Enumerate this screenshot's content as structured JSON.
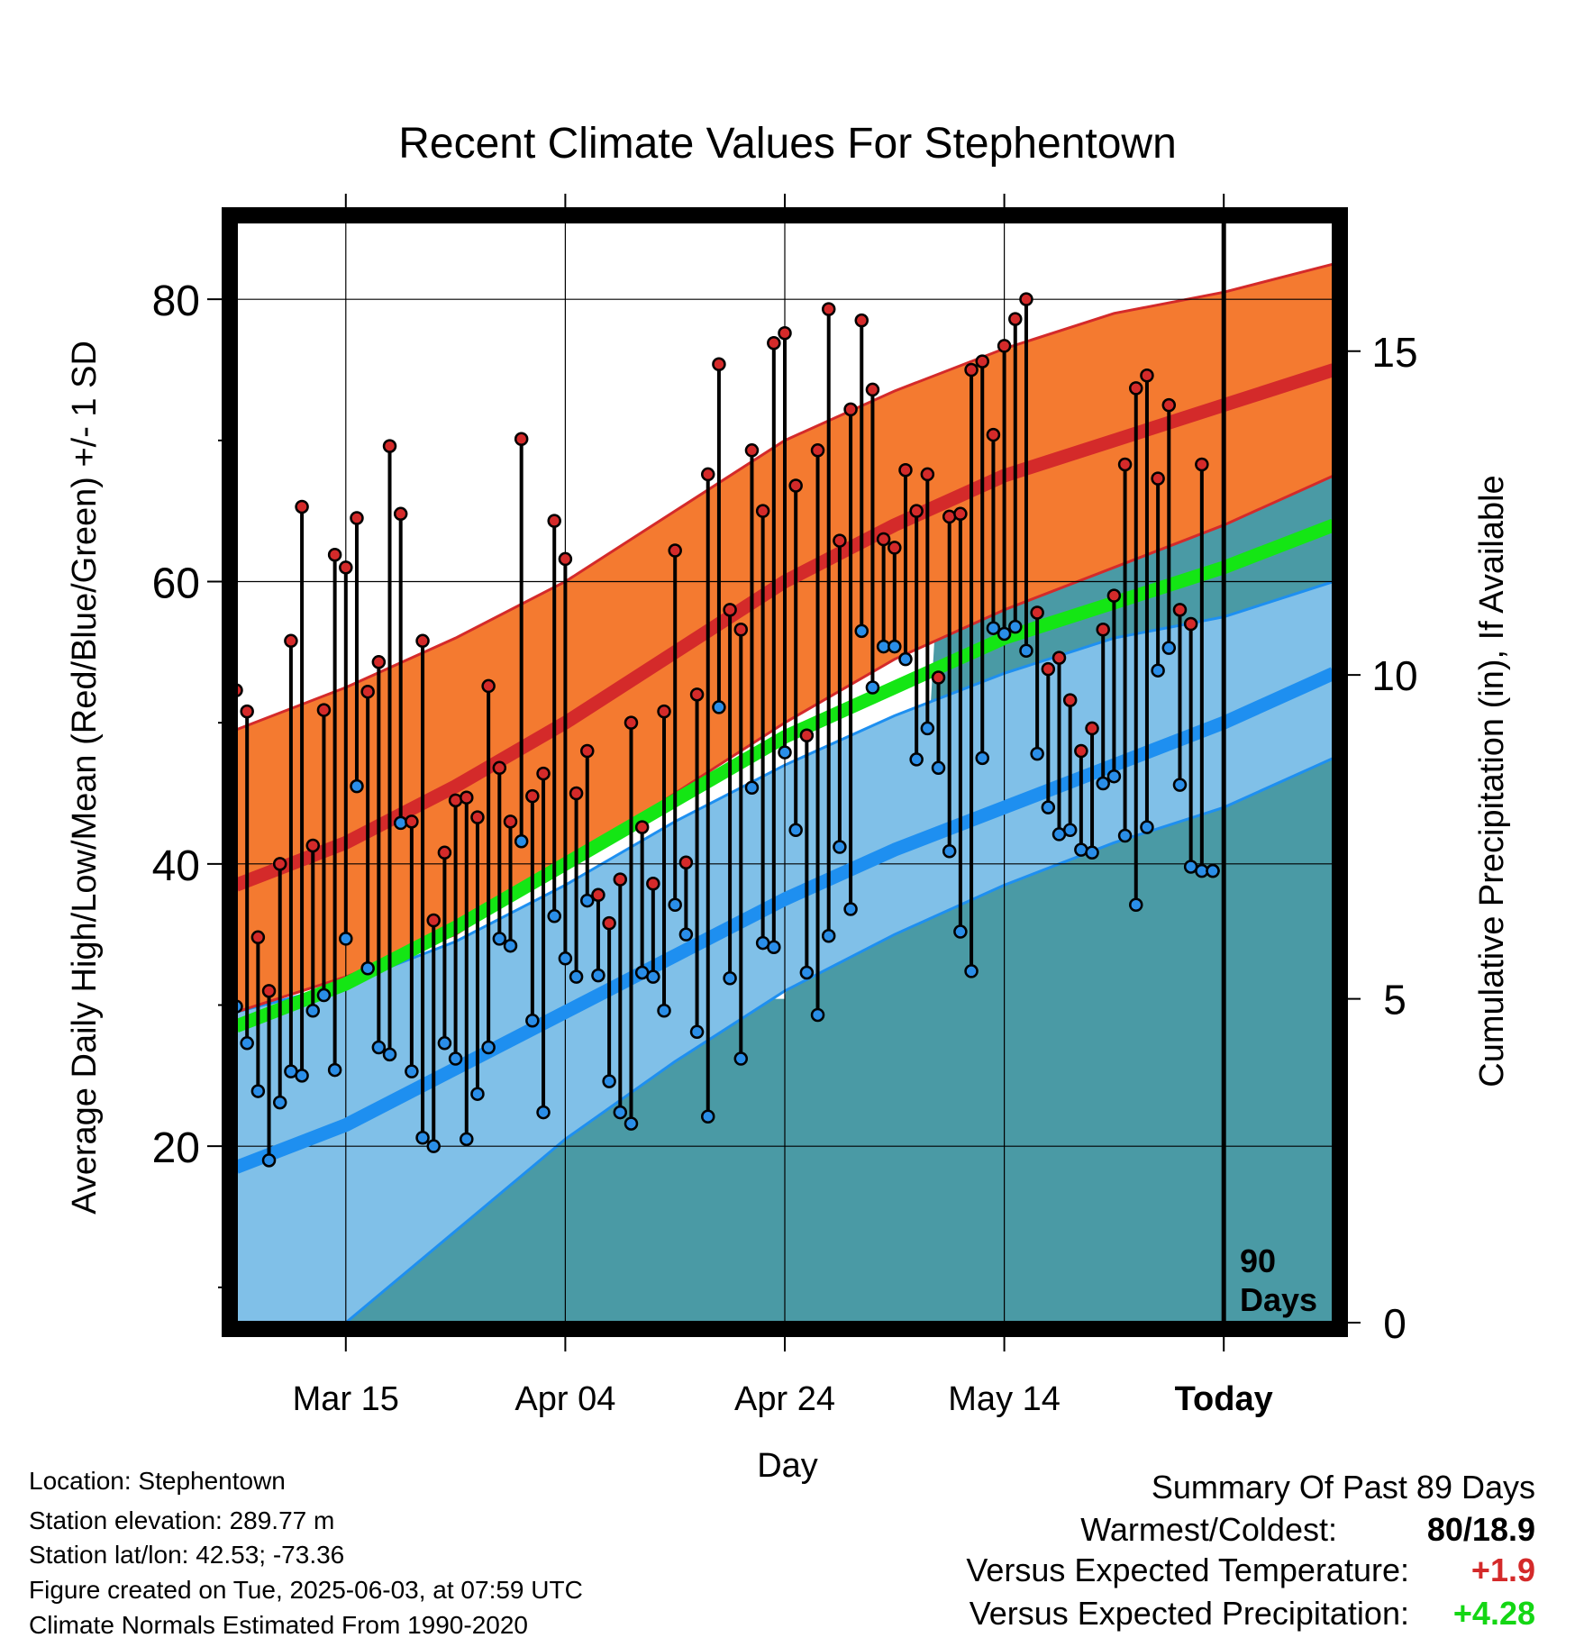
{
  "title": "Recent Climate Values For Stephentown",
  "y_axis_label": "Average Daily High/Low/Mean (Red/Blue/Green) +/- 1 SD",
  "y2_axis_label": "Cumulative Precipitation (in), If Available",
  "x_axis_label": "Day",
  "x_tick_labels": [
    "Mar 15",
    "Apr 04",
    "Apr 24",
    "May 14",
    "Today"
  ],
  "y_tick_labels": [
    "20",
    "40",
    "60",
    "80"
  ],
  "y2_tick_labels": [
    "0",
    "5",
    "10",
    "15"
  ],
  "today_label_line1": "90",
  "today_label_line2": "Days",
  "info": {
    "location": "Location: Stephentown",
    "elevation": "Station elevation: 289.77 m",
    "latlon": "Station lat/lon: 42.53; -73.36",
    "created": "Figure created on Tue, 2025-06-03, at 07:59 UTC",
    "normals": "Climate Normals Estimated From 1990-2020"
  },
  "summary": {
    "title": "Summary Of Past 89 Days",
    "warm_cold_label": "Warmest/Coldest:",
    "warm_cold_value": "80/18.9",
    "temp_label": "Versus Expected Temperature:",
    "temp_value": "+1.9",
    "precip_label": "Versus Expected Precipitation:",
    "precip_value": "+4.28"
  },
  "colors": {
    "high_band": "#f47a30",
    "high_line": "#d42a2a",
    "low_band": "#80c0e8",
    "low_line": "#1e8ff0",
    "mean_line": "#14e614",
    "precip": "#4a9aa5",
    "high_point": "#d42a2a",
    "low_point": "#2a8ee8",
    "temp_delta": "#d42a2a",
    "precip_delta": "#14d614"
  },
  "chart_data": {
    "type": "line",
    "x_unit": "day_offset",
    "xlim": [
      0,
      100
    ],
    "ylim": [
      7.5,
      85.5
    ],
    "y2lim": [
      0,
      17
    ],
    "today_x": 90,
    "x_ticks": [
      10,
      30,
      50,
      70,
      90
    ],
    "y_ticks": [
      20,
      40,
      60,
      80
    ],
    "y2_ticks": [
      0,
      5,
      10,
      15
    ],
    "normals": {
      "x": [
        0,
        10,
        20,
        30,
        40,
        50,
        60,
        70,
        80,
        90,
        100
      ],
      "high_mean": [
        38.5,
        41.5,
        45.5,
        50,
        55,
        60,
        64,
        67.5,
        70,
        72.5,
        75
      ],
      "high_upper": [
        49.5,
        52.5,
        56,
        60,
        65,
        70,
        73.5,
        76.5,
        79,
        80.5,
        82.5
      ],
      "high_lower": [
        29.5,
        32,
        35,
        40,
        45,
        50,
        54.5,
        58,
        61,
        64,
        67.5
      ],
      "low_mean": [
        18.5,
        21.5,
        25.5,
        29.5,
        33.5,
        37.5,
        41,
        44,
        47,
        50,
        53.5
      ],
      "low_upper": [
        29.5,
        31.5,
        34.5,
        38.5,
        43,
        47,
        50.5,
        53.5,
        56,
        57.5,
        60
      ],
      "low_lower": [
        7.5,
        7.5,
        14,
        20.5,
        26,
        31,
        35,
        38.5,
        41.5,
        44,
        47.5
      ],
      "mean": [
        28.5,
        31.5,
        35.5,
        40,
        44.5,
        49,
        52.5,
        56,
        58.5,
        61,
        64
      ]
    },
    "daily": {
      "x": [
        0,
        1,
        2,
        3,
        4,
        5,
        6,
        7,
        8,
        9,
        10,
        11,
        12,
        13,
        14,
        15,
        16,
        17,
        18,
        19,
        20,
        21,
        22,
        23,
        24,
        25,
        26,
        27,
        28,
        29,
        30,
        31,
        32,
        33,
        34,
        35,
        36,
        37,
        38,
        39,
        40,
        41,
        42,
        43,
        44,
        45,
        46,
        47,
        48,
        49,
        50,
        51,
        52,
        53,
        54,
        55,
        56,
        57,
        58,
        59,
        60,
        61,
        62,
        63,
        64,
        65,
        66,
        67,
        68,
        69,
        70,
        71,
        72,
        73,
        74,
        75,
        76,
        77,
        78,
        79,
        80,
        81,
        82,
        83,
        84,
        85,
        86,
        87,
        88,
        89
      ],
      "high": [
        52.3,
        50.8,
        34.8,
        31,
        40,
        55.8,
        65.3,
        41.3,
        50.9,
        61.9,
        61,
        64.5,
        52.2,
        54.3,
        69.6,
        64.8,
        43,
        55.8,
        36,
        40.8,
        44.5,
        44.7,
        43.3,
        52.6,
        46.8,
        43,
        70.1,
        44.8,
        46.4,
        64.3,
        61.6,
        45,
        48,
        37.8,
        35.8,
        38.9,
        50,
        42.6,
        38.6,
        50.8,
        62.2,
        40.1,
        52,
        67.6,
        75.4,
        58,
        56.6,
        69.3,
        65,
        76.9,
        77.6,
        66.8,
        49.1,
        69.3,
        79.3,
        62.9,
        72.2,
        78.5,
        73.6,
        63,
        62.4,
        67.9,
        65,
        67.6,
        53.2,
        64.6,
        64.8,
        75,
        75.6,
        70.4,
        76.7,
        78.6,
        80,
        57.8,
        53.8,
        54.6,
        51.6,
        48,
        49.6,
        56.6,
        59,
        68.3,
        73.7,
        74.6,
        67.3,
        72.5,
        58,
        57,
        68.3,
        39.5
      ],
      "low": [
        29.9,
        27.3,
        23.9,
        19,
        23.1,
        25.3,
        25,
        29.6,
        30.7,
        25.4,
        34.7,
        45.5,
        32.6,
        27,
        26.5,
        42.9,
        25.3,
        20.6,
        20,
        27.3,
        26.2,
        20.5,
        23.7,
        27,
        34.7,
        34.2,
        41.6,
        28.9,
        22.4,
        36.3,
        33.3,
        32,
        37.4,
        32.1,
        24.6,
        22.4,
        21.6,
        32.3,
        32,
        29.6,
        37.1,
        35,
        28.1,
        22.1,
        51.1,
        31.9,
        26.2,
        45.4,
        34.4,
        34.1,
        47.9,
        42.4,
        32.3,
        29.3,
        34.9,
        41.2,
        36.8,
        56.5,
        52.5,
        55.4,
        55.4,
        54.5,
        47.4,
        49.6,
        46.8,
        40.9,
        35.2,
        32.4,
        47.5,
        56.7,
        56.3,
        56.8,
        55.1,
        47.8,
        44,
        42.1,
        42.4,
        41,
        40.8,
        45.7,
        46.2,
        42,
        37.1,
        42.6,
        53.7,
        55.3,
        45.6,
        39.8,
        39.5,
        39.5
      ]
    },
    "precip": {
      "x": [
        0,
        1,
        2,
        3,
        4,
        5,
        6,
        7,
        8,
        9,
        10,
        11,
        12,
        13,
        14,
        15,
        16,
        17,
        18,
        19,
        20,
        21,
        22,
        23,
        24,
        25,
        26,
        27,
        28,
        29,
        30,
        31,
        32,
        33,
        34,
        35,
        36,
        37,
        38,
        39,
        40,
        41,
        42,
        43,
        44,
        45,
        46,
        47,
        48,
        49,
        50,
        51,
        52,
        53,
        54,
        55,
        56,
        57,
        58,
        59,
        60,
        61,
        62,
        63,
        64,
        65,
        66,
        67,
        68,
        69,
        70,
        71,
        72,
        73,
        74,
        75,
        76,
        77,
        78,
        79,
        80,
        81,
        82,
        83,
        84,
        85,
        86,
        87,
        88,
        89,
        90,
        100
      ],
      "cumulative": [
        0.3,
        0.3,
        0.3,
        0.3,
        0.3,
        0.3,
        0.3,
        0.3,
        0.3,
        0.3,
        0.3,
        0.8,
        1.1,
        1.1,
        1.1,
        1.5,
        1.8,
        2,
        2.1,
        2.1,
        2.2,
        2.2,
        2.2,
        2.2,
        2.3,
        2.4,
        2.5,
        2.5,
        2.8,
        2.8,
        3.1,
        3.4,
        3.6,
        3.7,
        3.9,
        3.9,
        4,
        4.3,
        4.3,
        4.3,
        4.5,
        4.5,
        4.5,
        4.5,
        4.8,
        4.9,
        5,
        5,
        5,
        5,
        5,
        6.3,
        6.3,
        6.3,
        6.4,
        6.4,
        6.4,
        6.4,
        6.5,
        7.3,
        7.8,
        8.4,
        8.4,
        8.7,
        11.6,
        11.6,
        11.6,
        11.6,
        11.6,
        11.6,
        11.7,
        11.8,
        12,
        12,
        12,
        12.2,
        12.3,
        12.8,
        13,
        13.1,
        13.1,
        13.1,
        13.1,
        13.1,
        13.1,
        13.4,
        15.5,
        15.5,
        15.5,
        15.5,
        15.5,
        15.5
      ]
    }
  }
}
